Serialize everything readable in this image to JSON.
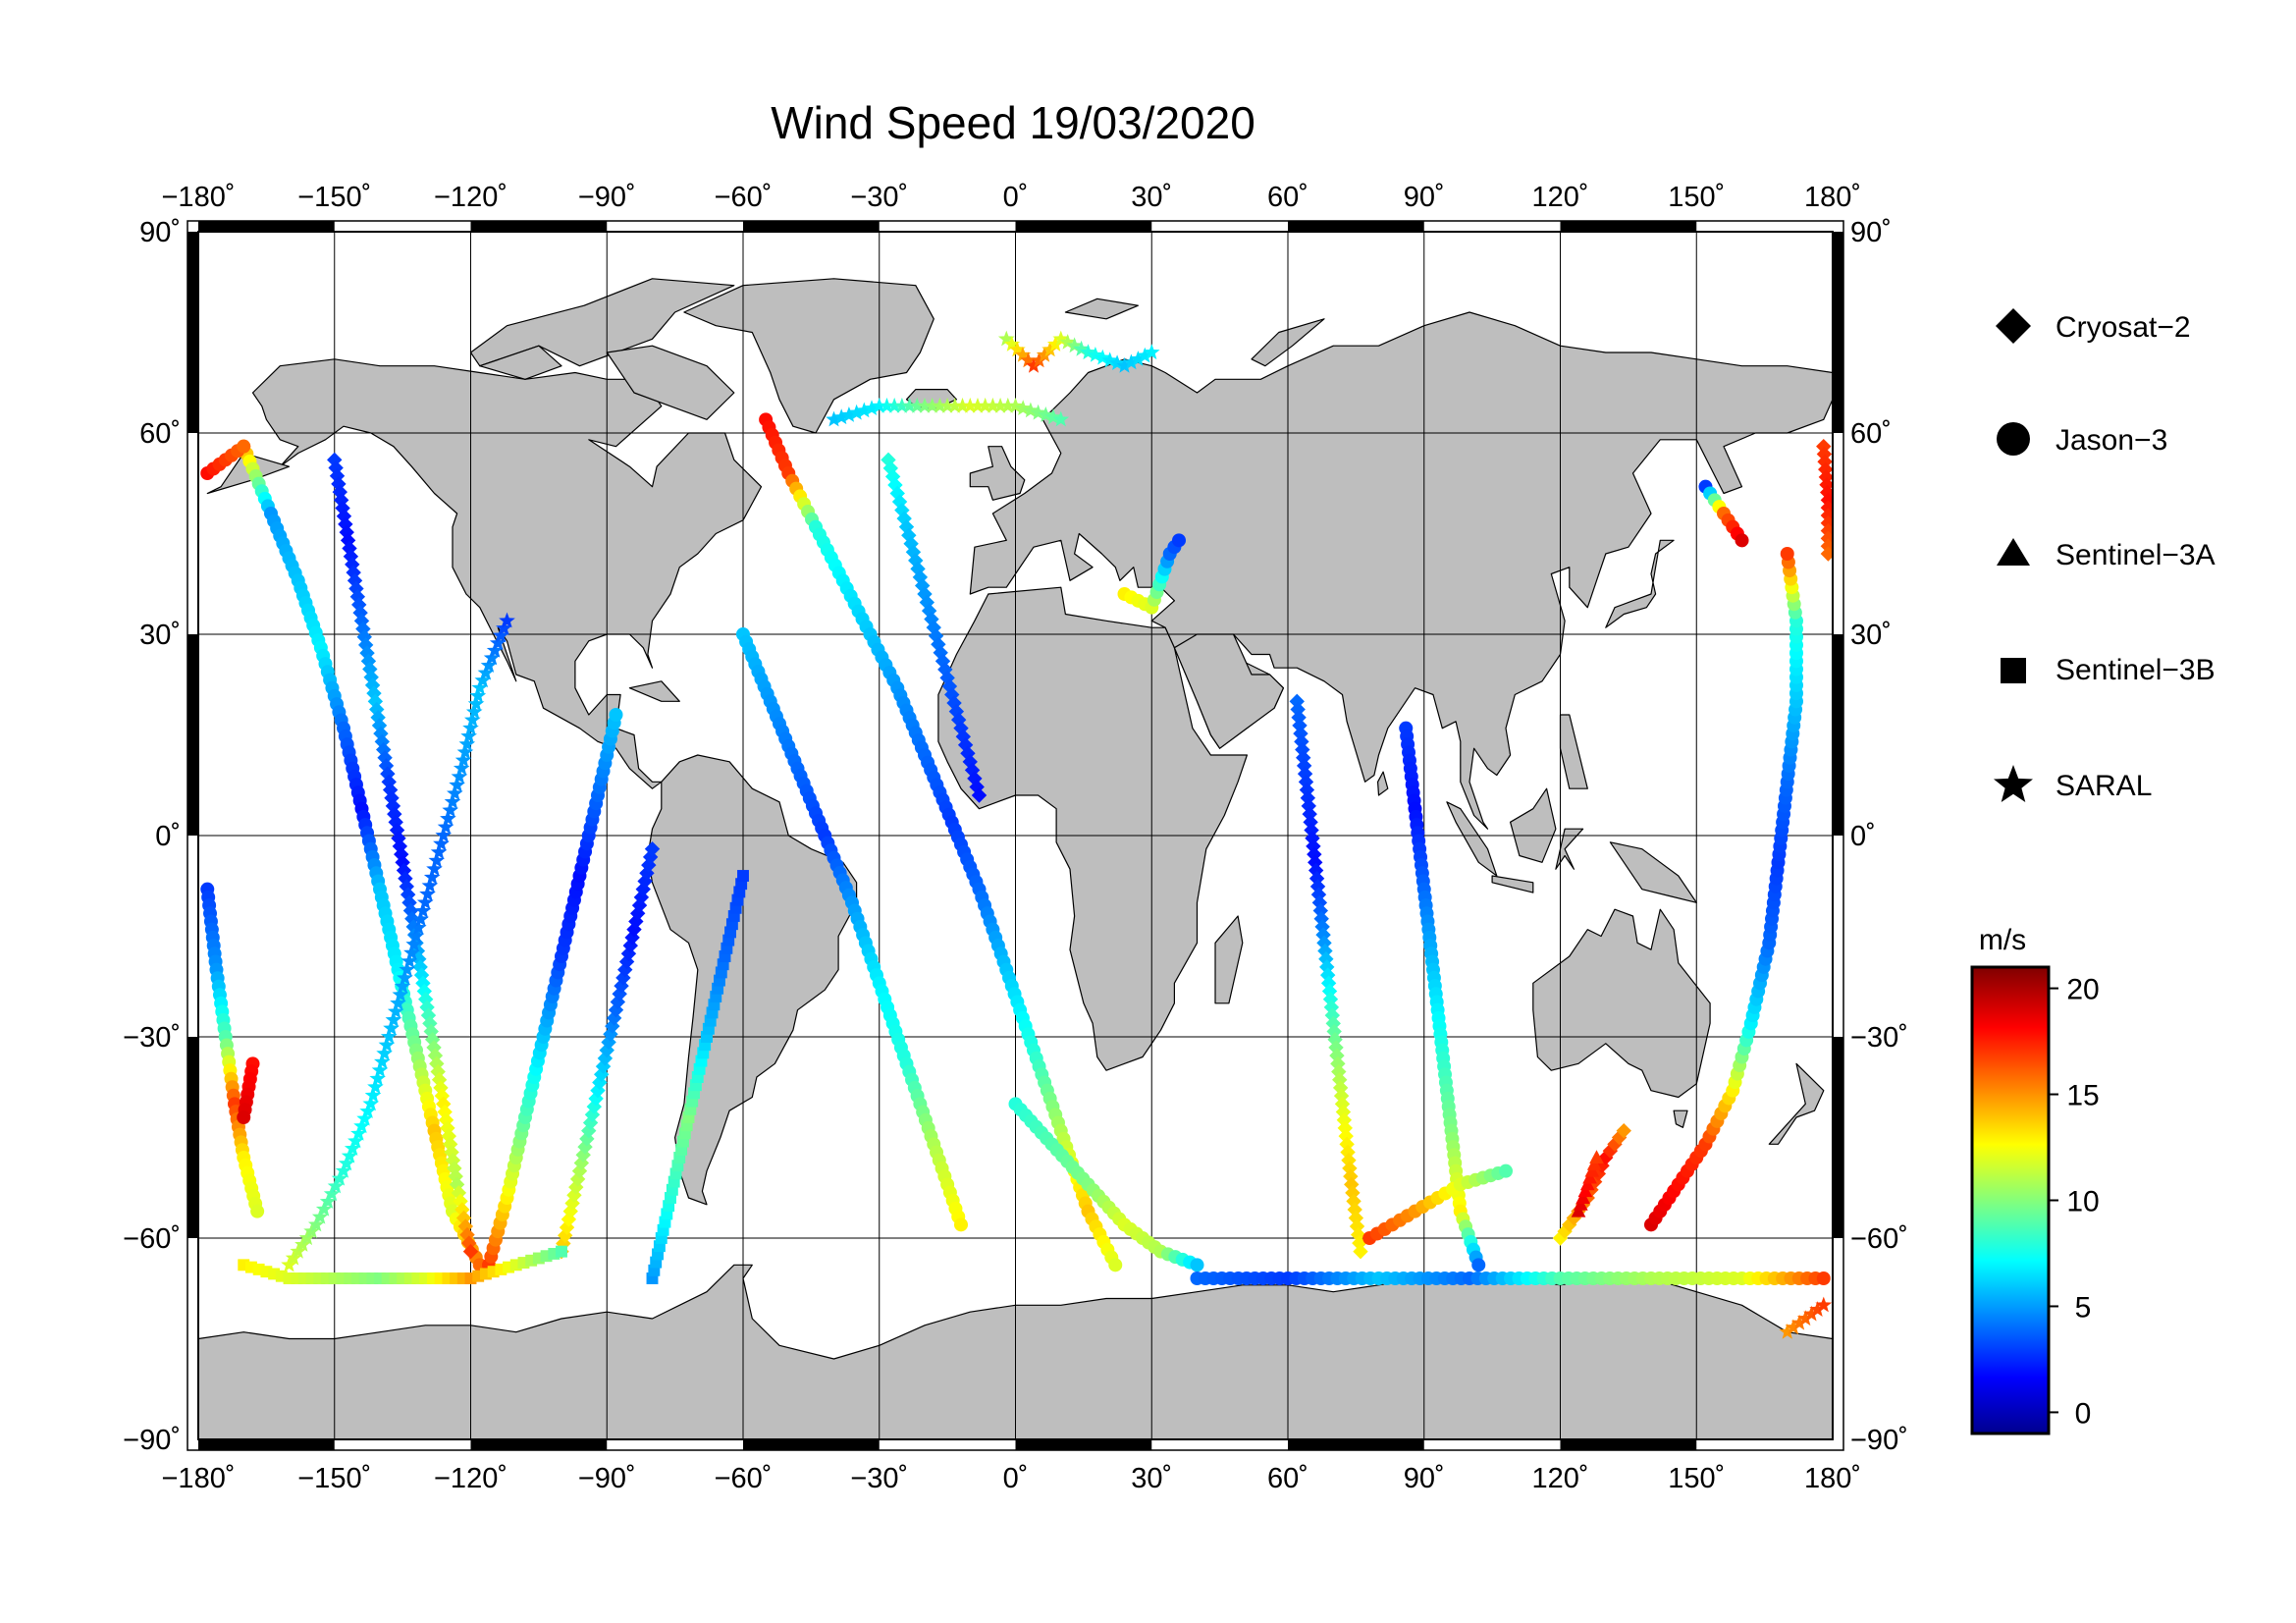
{
  "map": {
    "title": "Wind Speed 19/03/2020",
    "projection": "equirectangular",
    "lon_range": [
      -180,
      180
    ],
    "lat_range": [
      -90,
      90
    ],
    "lon_ticks": [
      -180,
      -150,
      -120,
      -90,
      -60,
      -30,
      0,
      30,
      60,
      90,
      120,
      150,
      180
    ],
    "lat_ticks": [
      90,
      60,
      30,
      0,
      -30,
      -60,
      -90
    ],
    "lon_tick_labels": [
      "−180˚",
      "−150˚",
      "−120˚",
      "−90˚",
      "−60˚",
      "−30˚",
      "0˚",
      "30˚",
      "60˚",
      "90˚",
      "120˚",
      "150˚",
      "180˚"
    ],
    "lat_tick_labels": [
      "90˚",
      "60˚",
      "30˚",
      "0˚",
      "−30˚",
      "−60˚",
      "−90˚"
    ],
    "grid": true,
    "colors": {
      "land": "#bebebe",
      "ocean": "#ffffff",
      "grid": "#000000",
      "coast": "#000000"
    }
  },
  "legend": {
    "items": [
      {
        "label": "Cryosat−2",
        "marker": "diamond"
      },
      {
        "label": "Jason−3",
        "marker": "circle"
      },
      {
        "label": "Sentinel−3A",
        "marker": "triangle"
      },
      {
        "label": "Sentinel−3B",
        "marker": "square"
      },
      {
        "label": "SARAL",
        "marker": "star"
      }
    ]
  },
  "colorbar": {
    "unit": "m/s",
    "min": -1,
    "max": 21,
    "ticks": [
      20,
      15,
      10,
      5,
      0
    ],
    "colormap": "jet",
    "colormap_stops": [
      "#00008f",
      "#0000ff",
      "#00ffff",
      "#ffff00",
      "#ff0000",
      "#800000"
    ]
  },
  "chart_data": {
    "type": "scatter",
    "xlabel": "",
    "ylabel": "",
    "xlim": [
      -180,
      180
    ],
    "ylim": [
      -90,
      90
    ],
    "color_variable": "wind speed (m/s)",
    "tracks": [
      {
        "marker": "circle",
        "points": [
          [
            -178,
            -8,
            3
          ],
          [
            -176,
            -20,
            5
          ],
          [
            -174,
            -30,
            9
          ],
          [
            -172,
            -40,
            17
          ],
          [
            -170,
            -48,
            13
          ],
          [
            -167,
            -56,
            12
          ]
        ]
      },
      {
        "marker": "circle",
        "points": [
          [
            -170,
            58,
            15
          ],
          [
            -164,
            48,
            5
          ],
          [
            -158,
            38,
            6
          ],
          [
            -153,
            28,
            7
          ],
          [
            -148,
            16,
            4
          ],
          [
            -144,
            4,
            2
          ],
          [
            -140,
            -8,
            6
          ],
          [
            -136,
            -20,
            7
          ],
          [
            -132,
            -32,
            10
          ],
          [
            -128,
            -44,
            14
          ],
          [
            -124,
            -56,
            12
          ],
          [
            -118,
            -64,
            16
          ]
        ]
      },
      {
        "marker": "diamond",
        "points": [
          [
            -150,
            56,
            3
          ],
          [
            -147,
            44,
            2
          ],
          [
            -144,
            32,
            4
          ],
          [
            -141,
            20,
            6
          ],
          [
            -138,
            8,
            3
          ],
          [
            -135,
            -4,
            2
          ],
          [
            -132,
            -16,
            5
          ],
          [
            -129,
            -28,
            9
          ],
          [
            -126,
            -40,
            13
          ],
          [
            -123,
            -52,
            11
          ],
          [
            -120,
            -62,
            17
          ]
        ]
      },
      {
        "marker": "star",
        "points": [
          [
            -160,
            -64,
            12
          ],
          [
            -154,
            -58,
            10
          ],
          [
            -148,
            -50,
            8
          ],
          [
            -142,
            -40,
            7
          ],
          [
            -138,
            -30,
            6
          ],
          [
            -134,
            -20,
            5
          ],
          [
            -130,
            -10,
            4
          ],
          [
            -126,
            0,
            4
          ],
          [
            -122,
            10,
            5
          ],
          [
            -118,
            22,
            6
          ],
          [
            -112,
            32,
            3
          ]
        ]
      },
      {
        "marker": "circle",
        "points": [
          [
            -116,
            -64,
            17
          ],
          [
            -112,
            -54,
            13
          ],
          [
            -108,
            -42,
            9
          ],
          [
            -104,
            -30,
            6
          ],
          [
            -100,
            -18,
            3
          ],
          [
            -96,
            -6,
            2
          ],
          [
            -92,
            6,
            4
          ],
          [
            -88,
            18,
            6
          ]
        ]
      },
      {
        "marker": "diamond",
        "points": [
          [
            -100,
            -62,
            14
          ],
          [
            -96,
            -50,
            11
          ],
          [
            -92,
            -38,
            7
          ],
          [
            -88,
            -26,
            4
          ],
          [
            -84,
            -14,
            2
          ],
          [
            -80,
            -2,
            3
          ]
        ]
      },
      {
        "marker": "square",
        "points": [
          [
            -80,
            -66,
            5
          ],
          [
            -76,
            -54,
            8
          ],
          [
            -72,
            -42,
            10
          ],
          [
            -68,
            -30,
            6
          ],
          [
            -64,
            -18,
            4
          ],
          [
            -60,
            -6,
            3
          ]
        ]
      },
      {
        "marker": "circle",
        "points": [
          [
            -60,
            30,
            6
          ],
          [
            -54,
            20,
            5
          ],
          [
            -48,
            10,
            4
          ],
          [
            -42,
            0,
            3
          ],
          [
            -36,
            -10,
            5
          ],
          [
            -30,
            -22,
            7
          ],
          [
            -24,
            -34,
            8
          ],
          [
            -18,
            -46,
            11
          ],
          [
            -12,
            -58,
            13
          ]
        ]
      },
      {
        "marker": "circle",
        "points": [
          [
            -55,
            62,
            18
          ],
          [
            -50,
            54,
            17
          ],
          [
            -44,
            46,
            8
          ],
          [
            -38,
            38,
            7
          ],
          [
            -32,
            30,
            6
          ],
          [
            -26,
            22,
            5
          ],
          [
            -20,
            12,
            4
          ],
          [
            -14,
            2,
            3
          ],
          [
            -8,
            -8,
            4
          ],
          [
            -2,
            -20,
            6
          ],
          [
            4,
            -32,
            8
          ],
          [
            10,
            -44,
            11
          ],
          [
            16,
            -56,
            14
          ],
          [
            22,
            -64,
            12
          ]
        ]
      },
      {
        "marker": "star",
        "points": [
          [
            -40,
            62,
            6
          ],
          [
            -30,
            64,
            7
          ],
          [
            -20,
            64,
            10
          ],
          [
            -10,
            64,
            12
          ],
          [
            0,
            64,
            11
          ],
          [
            10,
            62,
            9
          ]
        ]
      },
      {
        "marker": "diamond",
        "points": [
          [
            -28,
            56,
            8
          ],
          [
            -24,
            46,
            6
          ],
          [
            -20,
            36,
            5
          ],
          [
            -16,
            26,
            4
          ],
          [
            -12,
            16,
            3
          ],
          [
            -8,
            6,
            2
          ]
        ]
      },
      {
        "marker": "circle",
        "points": [
          [
            0,
            -40,
            8
          ],
          [
            8,
            -46,
            9
          ],
          [
            16,
            -52,
            10
          ],
          [
            24,
            -58,
            12
          ],
          [
            32,
            -62,
            11
          ],
          [
            40,
            -64,
            6
          ]
        ]
      },
      {
        "marker": "diamond",
        "points": [
          [
            62,
            20,
            4
          ],
          [
            64,
            8,
            3
          ],
          [
            66,
            -4,
            2
          ],
          [
            68,
            -16,
            5
          ],
          [
            70,
            -28,
            9
          ],
          [
            72,
            -40,
            12
          ],
          [
            74,
            -52,
            14
          ],
          [
            76,
            -62,
            13
          ]
        ]
      },
      {
        "marker": "circle",
        "points": [
          [
            86,
            16,
            3
          ],
          [
            88,
            4,
            2
          ],
          [
            90,
            -8,
            4
          ],
          [
            92,
            -20,
            6
          ],
          [
            94,
            -32,
            8
          ],
          [
            96,
            -44,
            10
          ],
          [
            98,
            -56,
            13
          ],
          [
            102,
            -64,
            4
          ]
        ]
      },
      {
        "marker": "circle",
        "points": [
          [
            78,
            -60,
            17
          ],
          [
            88,
            -56,
            15
          ],
          [
            98,
            -52,
            12
          ],
          [
            108,
            -50,
            9
          ]
        ]
      },
      {
        "marker": "diamond",
        "points": [
          [
            120,
            -60,
            13
          ],
          [
            126,
            -54,
            16
          ],
          [
            130,
            -48,
            18
          ],
          [
            134,
            -44,
            15
          ]
        ]
      },
      {
        "marker": "circle",
        "points": [
          [
            140,
            -58,
            19
          ],
          [
            146,
            -52,
            18
          ],
          [
            152,
            -46,
            17
          ],
          [
            158,
            -38,
            13
          ],
          [
            162,
            -28,
            7
          ],
          [
            166,
            -16,
            4
          ],
          [
            168,
            -4,
            3
          ],
          [
            170,
            8,
            4
          ],
          [
            172,
            20,
            6
          ],
          [
            172,
            32,
            8
          ],
          [
            170,
            42,
            17
          ]
        ]
      },
      {
        "marker": "circle",
        "points": [
          [
            152,
            52,
            3
          ],
          [
            156,
            48,
            16
          ],
          [
            160,
            44,
            19
          ]
        ]
      },
      {
        "marker": "diamond",
        "points": [
          [
            178,
            58,
            17
          ],
          [
            179,
            50,
            18
          ],
          [
            179,
            42,
            16
          ]
        ]
      },
      {
        "marker": "star",
        "points": [
          [
            -2,
            74,
            11
          ],
          [
            4,
            70,
            17
          ],
          [
            10,
            74,
            12
          ],
          [
            16,
            72,
            8
          ],
          [
            24,
            70,
            6
          ],
          [
            30,
            72,
            7
          ]
        ]
      },
      {
        "marker": "circle",
        "points": [
          [
            -178,
            54,
            18
          ],
          [
            -174,
            56,
            17
          ],
          [
            -170,
            58,
            16
          ]
        ]
      },
      {
        "marker": "circle",
        "points": [
          [
            -168,
            -34,
            18
          ],
          [
            -170,
            -42,
            19
          ]
        ]
      },
      {
        "marker": "star",
        "points": [
          [
            170,
            -74,
            15
          ],
          [
            174,
            -72,
            16
          ],
          [
            178,
            -70,
            17
          ]
        ]
      },
      {
        "marker": "triangle",
        "points": [
          [
            124,
            -56,
            19
          ],
          [
            126,
            -52,
            18
          ],
          [
            128,
            -48,
            17
          ]
        ]
      },
      {
        "marker": "square",
        "points": [
          [
            -170,
            -64,
            13
          ],
          [
            -160,
            -66,
            12
          ],
          [
            -150,
            -66,
            11
          ],
          [
            -140,
            -66,
            10
          ],
          [
            -130,
            -66,
            12
          ],
          [
            -120,
            -66,
            15
          ],
          [
            -110,
            -64,
            12
          ],
          [
            -100,
            -62,
            9
          ]
        ]
      },
      {
        "marker": "circle",
        "points": [
          [
            40,
            -66,
            4
          ],
          [
            60,
            -66,
            3
          ],
          [
            80,
            -66,
            6
          ],
          [
            100,
            -66,
            4
          ],
          [
            120,
            -66,
            9
          ],
          [
            140,
            -66,
            11
          ],
          [
            160,
            -66,
            12
          ],
          [
            178,
            -66,
            17
          ]
        ]
      },
      {
        "marker": "circle",
        "points": [
          [
            24,
            36,
            13
          ],
          [
            30,
            34,
            12
          ],
          [
            34,
            42,
            4
          ],
          [
            36,
            44,
            3
          ]
        ]
      }
    ]
  }
}
